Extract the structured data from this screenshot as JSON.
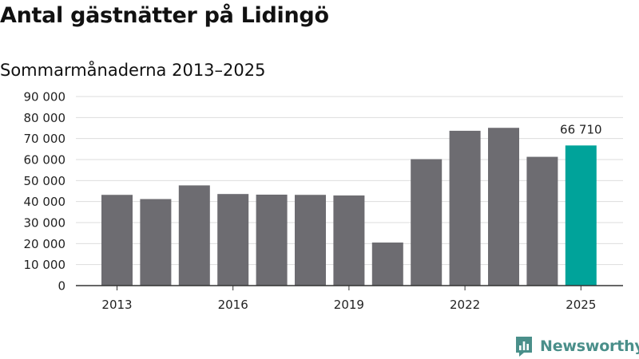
{
  "title": "Antal gästnätter på Lidingö",
  "subtitle": "Sommarmånaderna 2013–2025",
  "brand": {
    "name": "Newsworthy",
    "logo_icon": "newsworthy-logo-icon"
  },
  "colors": {
    "bar": "#6d6c71",
    "highlight": "#00a39a",
    "grid": "#dddddd",
    "axis": "#333333",
    "brand": "#4a8f8a"
  },
  "chart_data": {
    "type": "bar",
    "title": "Antal gästnätter på Lidingö",
    "subtitle": "Sommarmånaderna 2013–2025",
    "xlabel": "",
    "ylabel": "",
    "categories": [
      2013,
      2014,
      2015,
      2016,
      2017,
      2018,
      2019,
      2020,
      2021,
      2022,
      2023,
      2024,
      2025
    ],
    "values": [
      43200,
      41200,
      47700,
      43600,
      43300,
      43200,
      42900,
      20500,
      60200,
      73700,
      75100,
      61300,
      66710
    ],
    "highlight_category": 2025,
    "ylim": [
      0,
      90000
    ],
    "yticks": [
      0,
      10000,
      20000,
      30000,
      40000,
      50000,
      60000,
      70000,
      80000,
      90000
    ],
    "ytick_labels": [
      "0",
      "10 000",
      "20 000",
      "30 000",
      "40 000",
      "50 000",
      "60 000",
      "70 000",
      "80 000",
      "90 000"
    ],
    "xtick_labels": [
      "2013",
      "2016",
      "2019",
      "2022",
      "2025"
    ],
    "data_labels": [
      {
        "category": 2025,
        "text": "66 710"
      }
    ],
    "grid": true,
    "legend": "none"
  }
}
